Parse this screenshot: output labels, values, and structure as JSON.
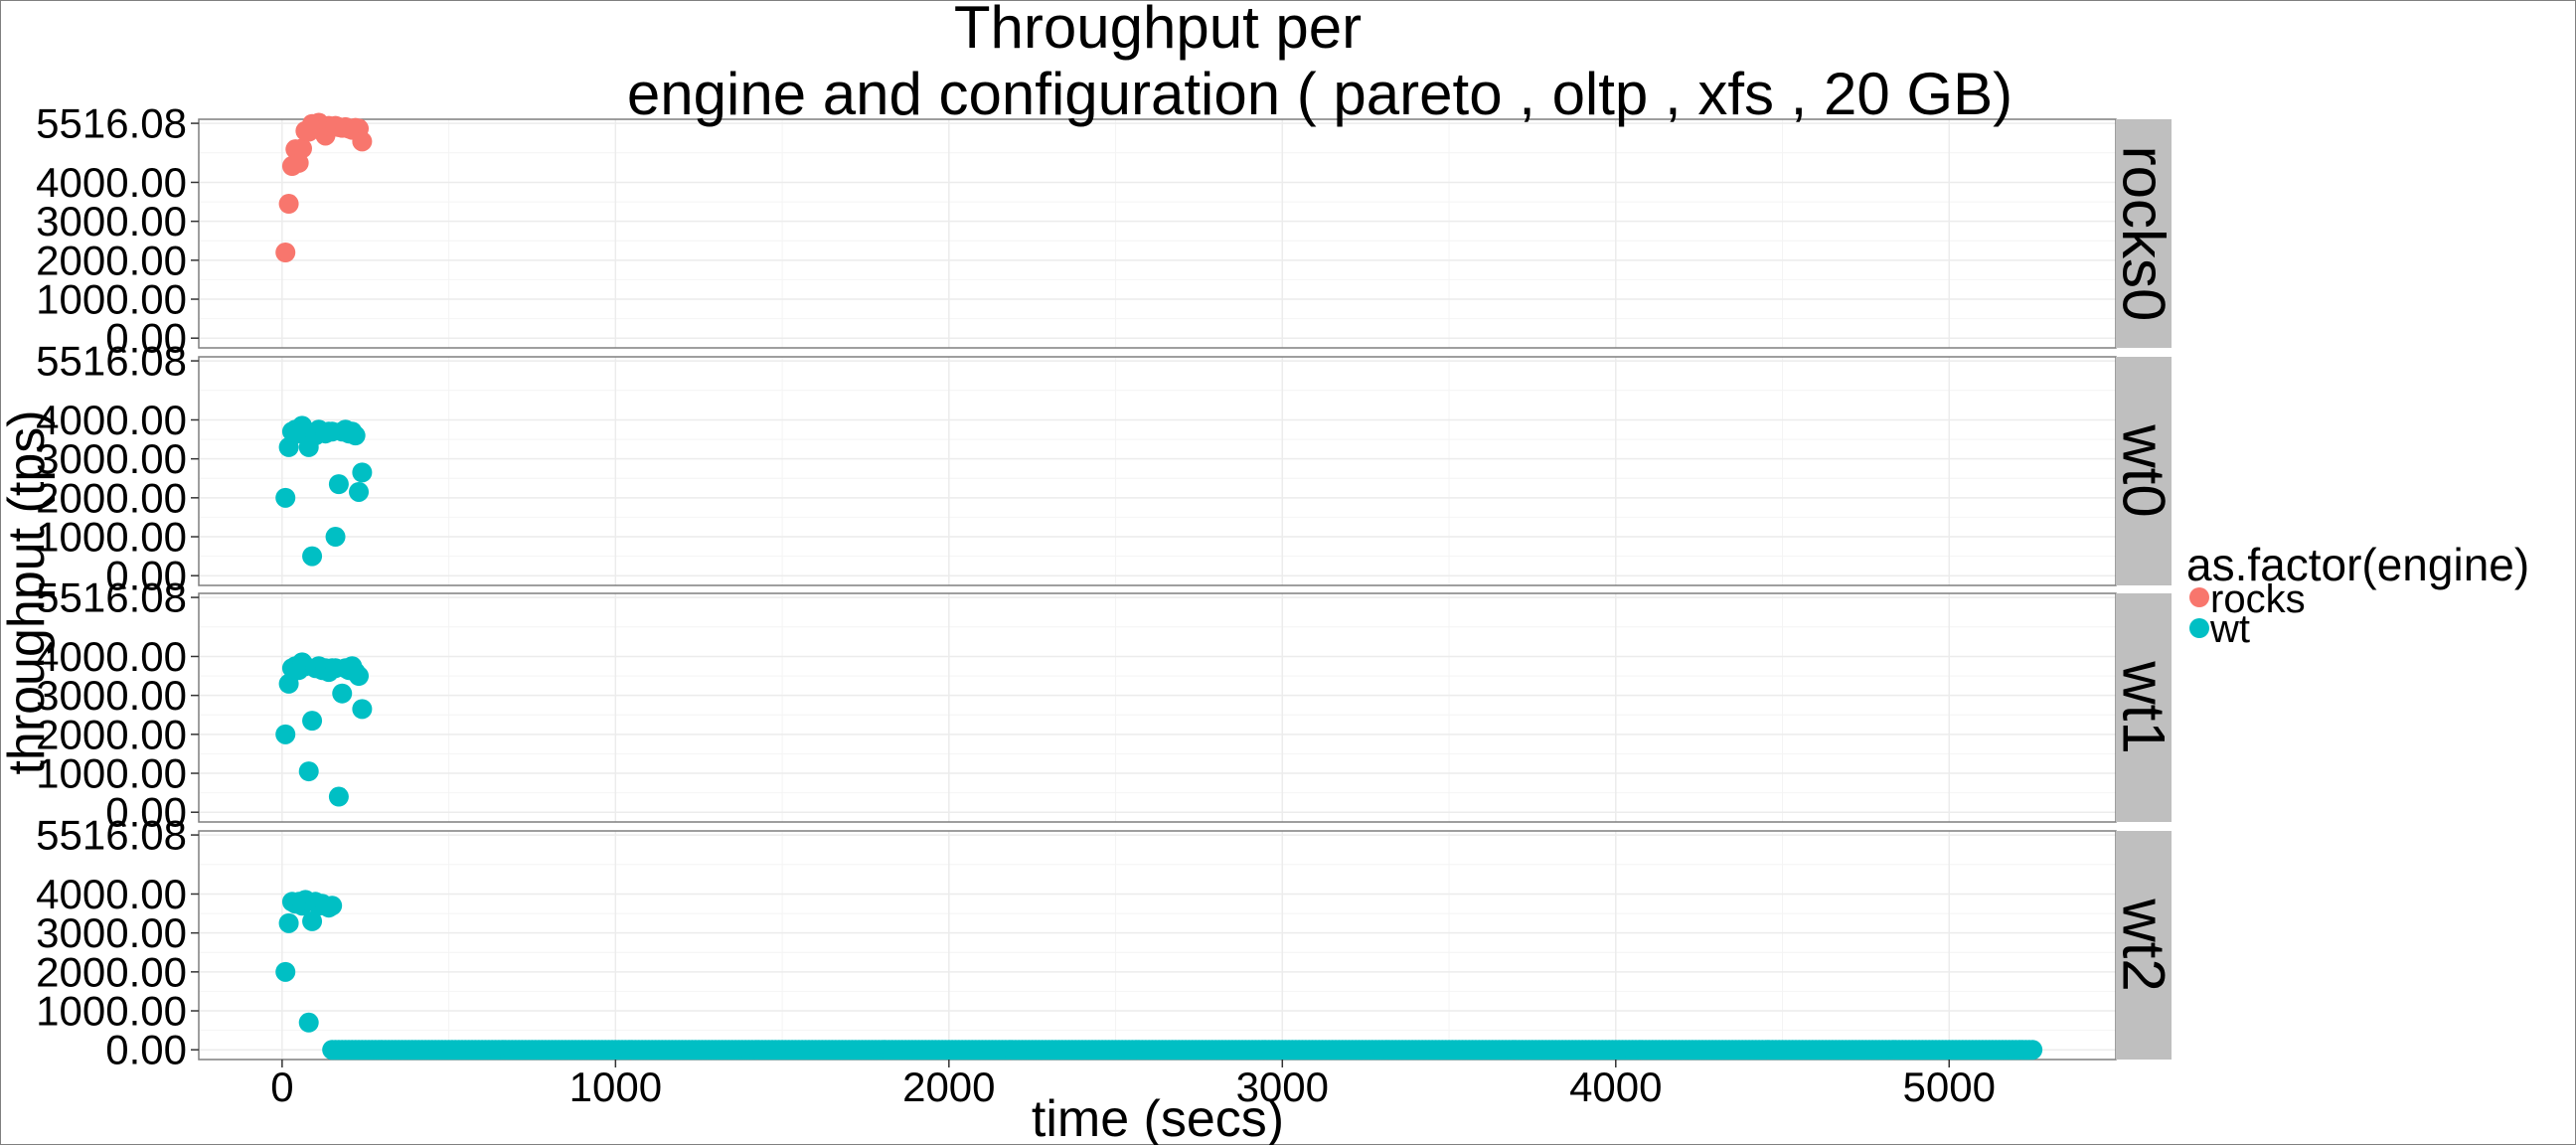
{
  "chart_data": {
    "type": "scatter",
    "title_line1": "Throughput per",
    "title_line2": "engine and configuration ( pareto , oltp , xfs ,  20 GB)",
    "xlabel": "time (secs)",
    "ylabel": "throughput (tps)",
    "xlim": [
      -250,
      5500
    ],
    "ylim": [
      -250,
      5620
    ],
    "x_ticks": [
      0,
      1000,
      2000,
      3000,
      4000,
      5000
    ],
    "x_tick_labels": [
      "0",
      "1000",
      "2000",
      "3000",
      "4000",
      "5000"
    ],
    "y_ticks": [
      0,
      1000,
      2000,
      3000,
      4000,
      5516.08
    ],
    "y_tick_labels": [
      "0.00",
      "1000.00",
      "2000.00",
      "3000.00",
      "4000.00",
      "5516.08"
    ],
    "grid": true,
    "legend": {
      "title": "as.factor(engine)",
      "placement": "right",
      "entries": [
        {
          "label": "rocks",
          "color": "#F8766D"
        },
        {
          "label": "wt",
          "color": "#00BFC4"
        }
      ]
    },
    "panels": [
      {
        "strip": "rocks0",
        "engine": "rocks",
        "x": [
          10,
          20,
          30,
          40,
          50,
          60,
          70,
          80,
          90,
          100,
          110,
          120,
          130,
          140,
          150,
          160,
          170,
          180,
          190,
          200,
          210,
          220,
          230,
          240
        ],
        "y": [
          2200,
          3450,
          4420,
          4850,
          4500,
          4870,
          5320,
          5300,
          5500,
          5420,
          5530,
          5350,
          5200,
          5450,
          5420,
          5450,
          5420,
          5400,
          5420,
          5380,
          5350,
          5400,
          5380,
          5050
        ]
      },
      {
        "strip": "wt0",
        "engine": "wt",
        "x": [
          10,
          20,
          30,
          40,
          50,
          60,
          70,
          80,
          90,
          100,
          110,
          120,
          130,
          140,
          150,
          160,
          170,
          180,
          190,
          200,
          210,
          220,
          230,
          240
        ],
        "y": [
          2000,
          3300,
          3700,
          3750,
          3650,
          3850,
          3700,
          3300,
          500,
          3600,
          3750,
          3700,
          3650,
          3700,
          3700,
          1000,
          2350,
          3700,
          3750,
          3650,
          3700,
          3600,
          2150,
          2650
        ]
      },
      {
        "strip": "wt1",
        "engine": "wt",
        "x": [
          10,
          20,
          30,
          40,
          50,
          60,
          70,
          80,
          90,
          100,
          110,
          120,
          130,
          140,
          150,
          160,
          170,
          180,
          190,
          200,
          210,
          220,
          230,
          240
        ],
        "y": [
          2000,
          3300,
          3700,
          3750,
          3650,
          3850,
          3750,
          1050,
          2350,
          3700,
          3750,
          3650,
          3700,
          3600,
          3700,
          3700,
          400,
          3050,
          3700,
          3650,
          3750,
          3600,
          3500,
          2650
        ]
      },
      {
        "strip": "wt2",
        "engine": "wt",
        "x": [
          10,
          20,
          30,
          40,
          50,
          60,
          70,
          80,
          90,
          100,
          110,
          120,
          130,
          140,
          150
        ],
        "y": [
          2000,
          3250,
          3800,
          3750,
          3800,
          3700,
          3850,
          700,
          3300,
          3800,
          3700,
          3750,
          3700,
          3650,
          3700
        ],
        "flat_series": {
          "x_start": 150,
          "x_end": 5250,
          "step": 10,
          "y": 0
        }
      }
    ]
  }
}
